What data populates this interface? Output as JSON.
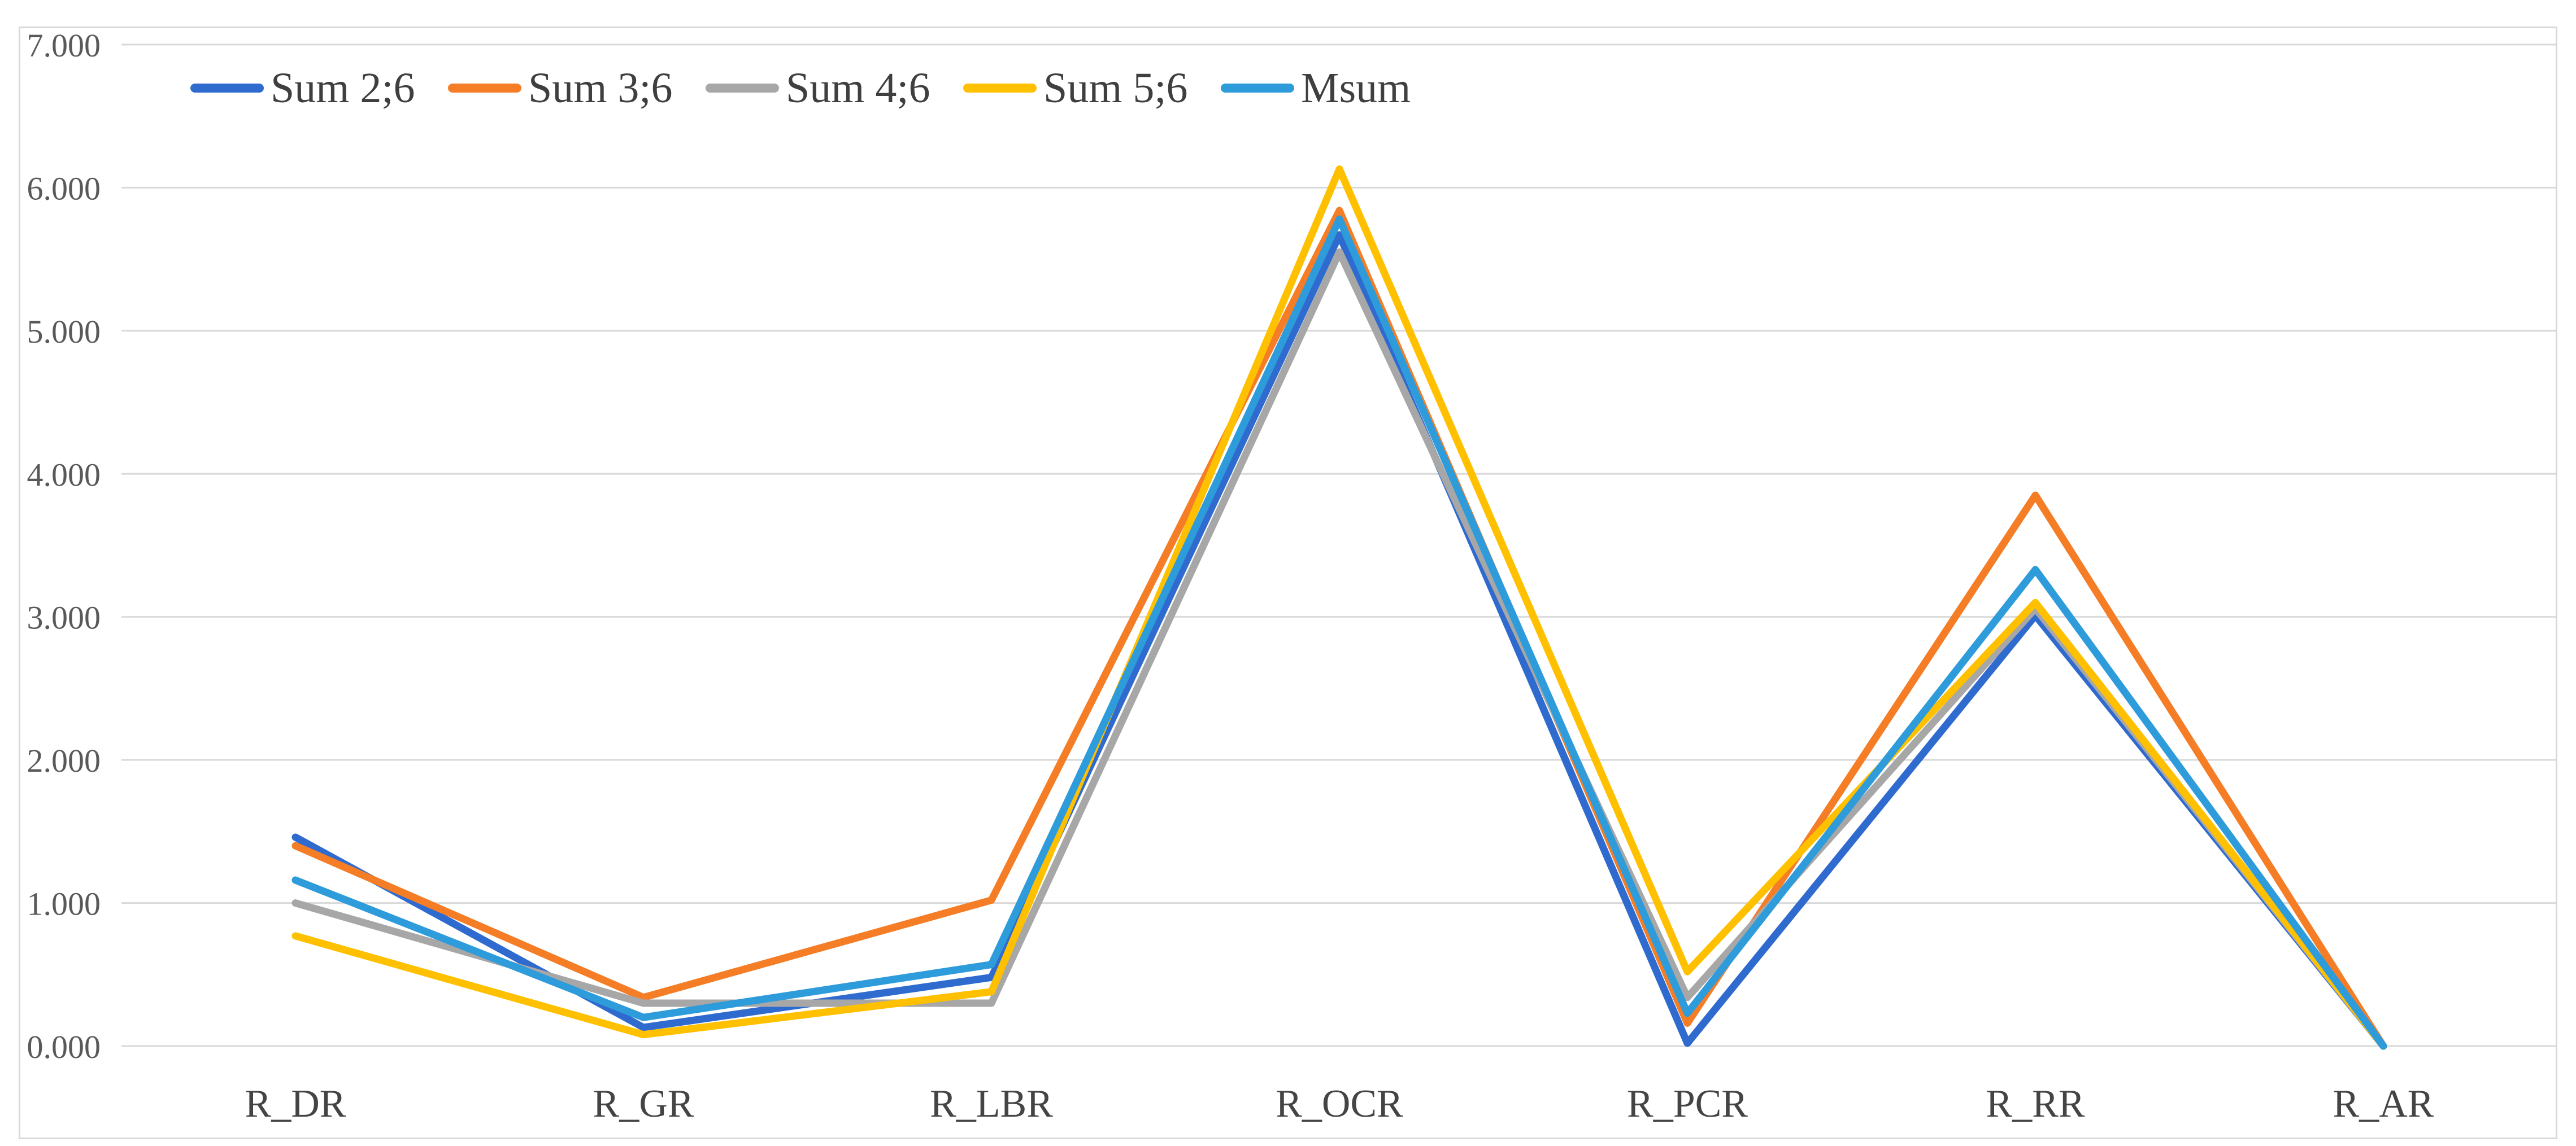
{
  "chart_data": {
    "type": "line",
    "title": "",
    "categories": [
      "R_DR",
      "R_GR",
      "R_LBR",
      "R_OCR",
      "R_PCR",
      "R_RR",
      "R_AR"
    ],
    "series": [
      {
        "name": "Sum 2;6",
        "color": "#2F6BCF",
        "values": [
          1.46,
          0.13,
          0.48,
          5.67,
          0.02,
          3.01,
          0.0
        ]
      },
      {
        "name": "Sum 3;6",
        "color": "#F47D26",
        "values": [
          1.4,
          0.34,
          1.02,
          5.84,
          0.16,
          3.85,
          0.0
        ]
      },
      {
        "name": "Sum 4;6",
        "color": "#A7A7A7",
        "values": [
          1.0,
          0.3,
          0.3,
          5.55,
          0.34,
          3.06,
          0.0
        ]
      },
      {
        "name": "Sum 5;6",
        "color": "#FFC000",
        "values": [
          0.77,
          0.08,
          0.38,
          6.13,
          0.52,
          3.1,
          0.0
        ]
      },
      {
        "name": "Msum",
        "color": "#2E9BDB",
        "values": [
          1.16,
          0.2,
          0.57,
          5.78,
          0.23,
          3.33,
          0.0
        ]
      }
    ],
    "ylim": [
      0,
      7
    ],
    "ytick_labels": [
      "0.000",
      "1.000",
      "2.000",
      "3.000",
      "4.000",
      "5.000",
      "6.000",
      "7.000"
    ],
    "grid": true,
    "legend_position": "top-left",
    "colors": {
      "gridline": "#D9D9D9",
      "chart_border": "#D9D9D9",
      "ytick_text": "#595959",
      "xtick_text": "#444444",
      "legend_text": "#3F3F3F",
      "background": "#FFFFFF"
    }
  }
}
